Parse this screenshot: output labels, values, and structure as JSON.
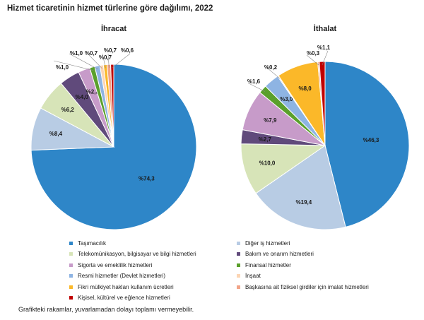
{
  "title": "Hizmet ticaretinin hizmet türlerine göre dağılımı, 2022",
  "footnote": "Grafikteki rakamlar, yuvarlamadan dolayı toplamı vermeyebilir.",
  "chart_data": [
    {
      "type": "pie",
      "title": "İhracat",
      "slices": [
        {
          "category": "Taşımacılık",
          "value": 74.3,
          "label": "%74,3"
        },
        {
          "category": "Diğer iş hizmetleri",
          "value": 8.4,
          "label": "%8,4"
        },
        {
          "category": "Telekomünikasyon, bilgisayar ve bilgi hizmetleri",
          "value": 6.2,
          "label": "%6,2"
        },
        {
          "category": "Bakım ve onarım hizmetleri",
          "value": 4.0,
          "label": "%4,0"
        },
        {
          "category": "Sigorta ve emeklilik hizmetleri",
          "value": 2.3,
          "label": "%2,3"
        },
        {
          "category": "Finansal hizmetler",
          "value": 1.0,
          "label": "%1,0"
        },
        {
          "category": "Resmi hizmetler (Devlet hizmetleri)",
          "value": 1.0,
          "label": "%1,0"
        },
        {
          "category": "İnşaat",
          "value": 0.7,
          "label": "%0,7"
        },
        {
          "category": "Fikri mülkiyet hakları kullanım ücretleri",
          "value": 0.7,
          "label": "%0,7"
        },
        {
          "category": "Başkasına ait fiziksel girdiler için imalat hizmetleri",
          "value": 0.7,
          "label": "%0,7"
        },
        {
          "category": "Kişisel, kültürel ve eğlence hizmetleri",
          "value": 0.6,
          "label": "%0,6"
        }
      ]
    },
    {
      "type": "pie",
      "title": "İthalat",
      "slices": [
        {
          "category": "Taşımacılık",
          "value": 46.3,
          "label": "%46,3"
        },
        {
          "category": "Diğer iş hizmetleri",
          "value": 19.4,
          "label": "%19,4"
        },
        {
          "category": "Telekomünikasyon, bilgisayar ve bilgi hizmetleri",
          "value": 10.0,
          "label": "%10,0"
        },
        {
          "category": "Bakım ve onarım hizmetleri",
          "value": 2.7,
          "label": "%2,7"
        },
        {
          "category": "Sigorta ve emeklilik hizmetleri",
          "value": 7.9,
          "label": "%7,9"
        },
        {
          "category": "Finansal hizmetler",
          "value": 1.6,
          "label": "%1,6"
        },
        {
          "category": "Resmi hizmetler (Devlet hizmetleri)",
          "value": 3.0,
          "label": "%3,0"
        },
        {
          "category": "İnşaat",
          "value": 0.2,
          "label": "%0,2"
        },
        {
          "category": "Fikri mülkiyet hakları kullanım ücretleri",
          "value": 8.0,
          "label": "%8,0"
        },
        {
          "category": "Başkasına ait fiziksel girdiler için imalat hizmetleri",
          "value": 0.3,
          "label": "%0,3"
        },
        {
          "category": "Kişisel, kültürel ve eğlence hizmetleri",
          "value": 1.1,
          "label": "%1,1"
        }
      ]
    }
  ],
  "legend": [
    {
      "label": "Taşımacılık",
      "color": "#2e86c8"
    },
    {
      "label": "Diğer iş hizmetleri",
      "color": "#b8cce4"
    },
    {
      "label": "Telekomünikasyon, bilgisayar ve bilgi hizmetleri",
      "color": "#d7e4b8"
    },
    {
      "label": "Bakım ve onarım hizmetleri",
      "color": "#604a7b"
    },
    {
      "label": "Sigorta ve emeklilik hizmetleri",
      "color": "#c79bc9"
    },
    {
      "label": "Finansal hizmetler",
      "color": "#5aa02c"
    },
    {
      "label": "Resmi hizmetler (Devlet hizmetleri)",
      "color": "#8eb4e3"
    },
    {
      "label": "İnşaat",
      "color": "#fcd5b4"
    },
    {
      "label": "Fikri mülkiyet hakları kullanım ücretleri",
      "color": "#fbb829"
    },
    {
      "label": "Başkasına ait fiziksel girdiler için imalat hizmetleri",
      "color": "#f2a488"
    },
    {
      "label": "Kişisel, kültürel ve eğlence hizmetleri",
      "color": "#c00000"
    }
  ]
}
